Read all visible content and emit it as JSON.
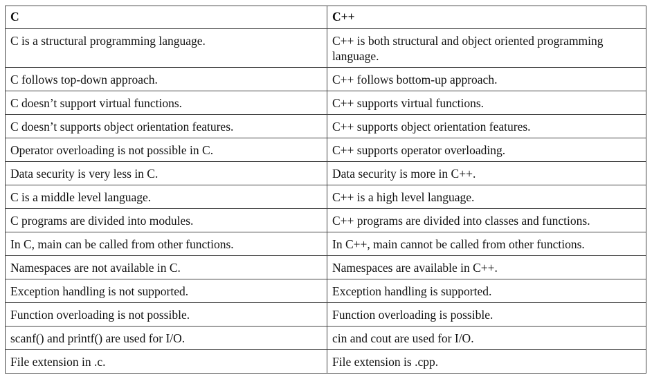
{
  "table": {
    "headers": [
      "C",
      "C++"
    ],
    "rows": [
      [
        "C is a structural programming language.",
        "C++ is both structural and object oriented programming language."
      ],
      [
        "C follows top-down approach.",
        "C++ follows bottom-up approach."
      ],
      [
        "C doesn’t support virtual functions.",
        "C++ supports virtual functions."
      ],
      [
        "C doesn’t supports object orientation features.",
        "C++ supports object orientation features."
      ],
      [
        "Operator overloading is not possible in C.",
        "C++ supports operator overloading."
      ],
      [
        "Data security is very less in C.",
        "Data security is more in C++."
      ],
      [
        "C is a middle level language.",
        "C++ is a high level language."
      ],
      [
        "C programs are divided into modules.",
        "C++ programs are divided into classes and functions."
      ],
      [
        "In C, main can be called from other functions.",
        "In C++, main cannot be called from other functions."
      ],
      [
        "Namespaces are not available in C.",
        "Namespaces are available in C++."
      ],
      [
        "Exception handling is not supported.",
        "Exception handling is supported."
      ],
      [
        "Function overloading is not possible.",
        "Function overloading is possible."
      ],
      [
        "scanf() and printf() are used for I/O.",
        "cin and cout are used for I/O."
      ],
      [
        "File extension in .c.",
        "File extension is .cpp."
      ]
    ]
  }
}
